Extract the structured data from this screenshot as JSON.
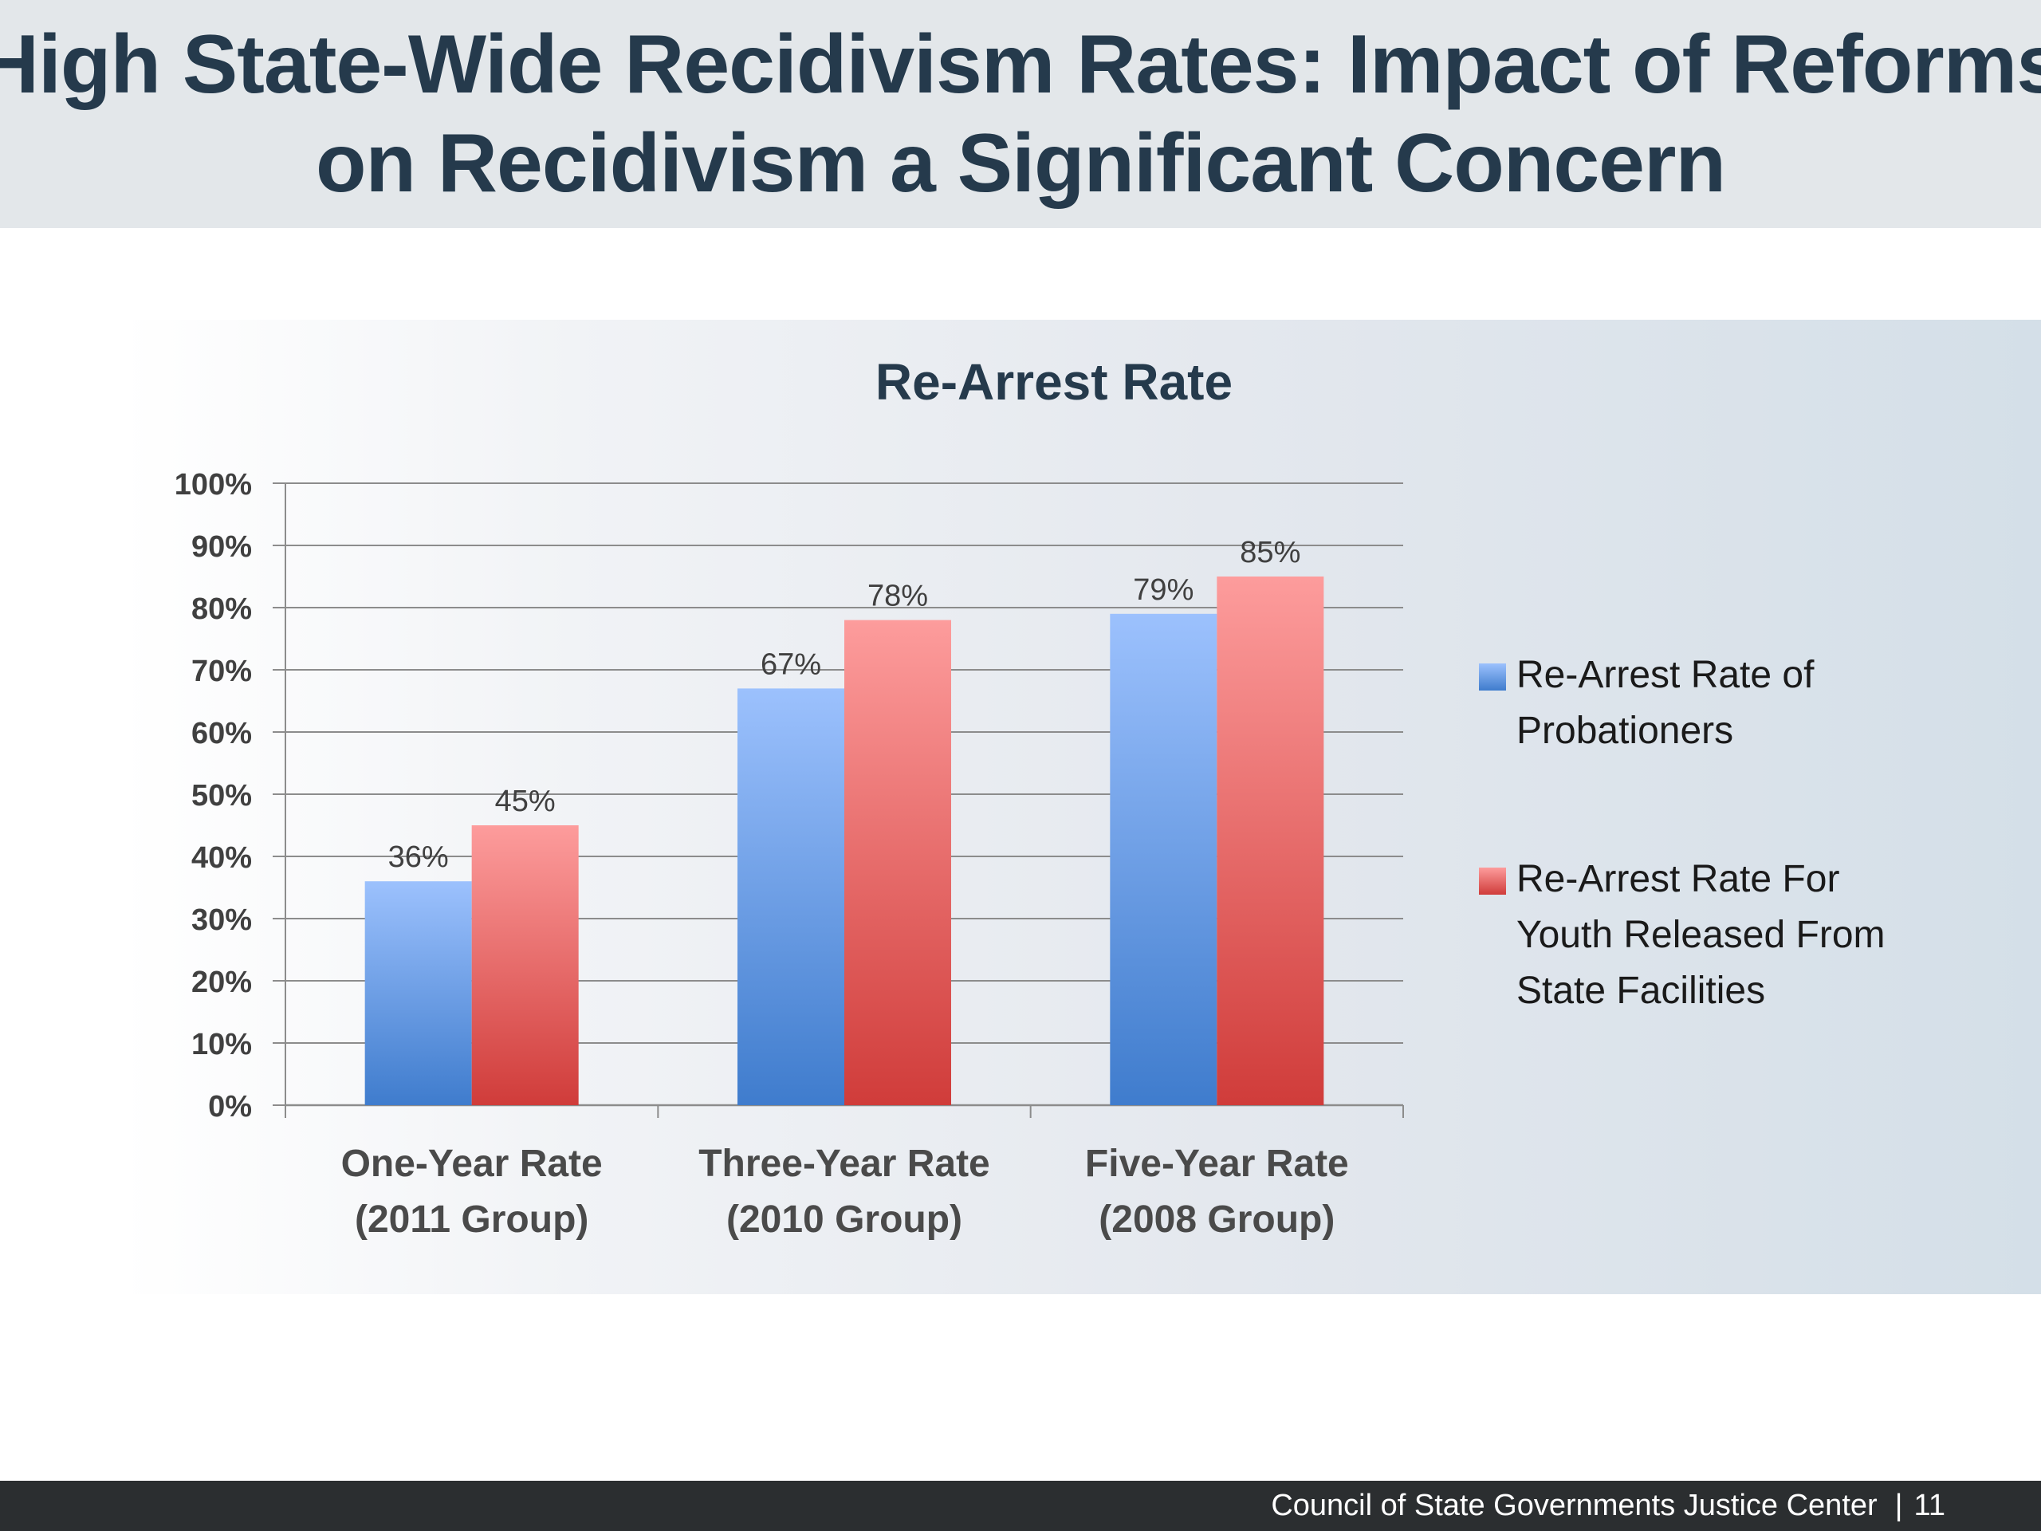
{
  "header": {
    "title_line1": "High State-Wide Recidivism Rates: Impact of Reforms",
    "title_line2": "on Recidivism a Significant Concern"
  },
  "footer": {
    "org": "Council of State Governments Justice Center",
    "separator": "|",
    "page_number": "11"
  },
  "colors": {
    "probationers_top": "#9cc1fd",
    "probationers_bottom": "#3f7ccd",
    "youth_top": "#fd9c9c",
    "youth_bottom": "#d03c3a",
    "title_text": "#253a4c",
    "gridline": "#8c8c8c"
  },
  "chart_data": {
    "type": "bar",
    "title": "Re-Arrest Rate",
    "categories": [
      [
        "One-Year Rate",
        "(2011 Group)"
      ],
      [
        "Three-Year Rate",
        "(2010 Group)"
      ],
      [
        "Five-Year Rate",
        "(2008 Group)"
      ]
    ],
    "series": [
      {
        "name": [
          "Re-Arrest Rate of",
          "Probationers"
        ],
        "values": [
          36,
          67,
          79
        ],
        "labels": [
          "36%",
          "67%",
          "79%"
        ],
        "color_key": "probationers"
      },
      {
        "name": [
          "Re-Arrest Rate For",
          "Youth Released From",
          "State Facilities"
        ],
        "values": [
          45,
          78,
          85
        ],
        "labels": [
          "45%",
          "78%",
          "85%"
        ],
        "color_key": "youth"
      }
    ],
    "ylim": [
      0,
      100
    ],
    "yticks": [
      "0%",
      "10%",
      "20%",
      "30%",
      "40%",
      "50%",
      "60%",
      "70%",
      "80%",
      "90%",
      "100%"
    ],
    "grid": true,
    "legend": "right",
    "data_labels": true
  }
}
